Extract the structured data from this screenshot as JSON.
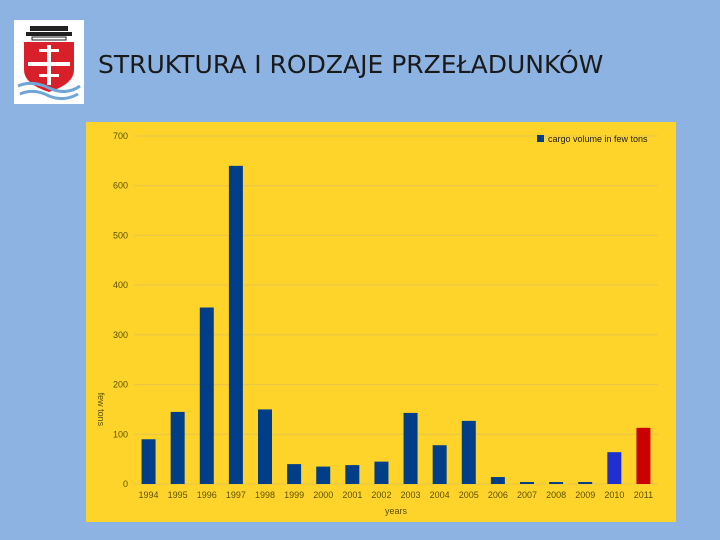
{
  "slide": {
    "title": "STRUKTURA I RODZAJE PRZEŁADUNKÓW"
  },
  "colors": {
    "background": "#8db3e2",
    "plot_background": "#ffd42a",
    "bar_default": "#003f87",
    "bar_2010": "#1f2fd0",
    "bar_2011": "#c80000"
  },
  "logo": {
    "icon": "city-crest-ship-icon"
  },
  "chart_data": {
    "type": "bar",
    "categories": [
      "1994",
      "1995",
      "1996",
      "1997",
      "1998",
      "1999",
      "2000",
      "2001",
      "2002",
      "2003",
      "2004",
      "2005",
      "2006",
      "2007",
      "2008",
      "2009",
      "2010",
      "2011"
    ],
    "series": [
      {
        "name": "cargo volume in few tons",
        "values": [
          90,
          145,
          355,
          640,
          150,
          40,
          35,
          38,
          45,
          143,
          78,
          127,
          14,
          4,
          4,
          4,
          64,
          113
        ],
        "colors": [
          "#003f87",
          "#003f87",
          "#003f87",
          "#003f87",
          "#003f87",
          "#003f87",
          "#003f87",
          "#003f87",
          "#003f87",
          "#003f87",
          "#003f87",
          "#003f87",
          "#003f87",
          "#003f87",
          "#003f87",
          "#003f87",
          "#1f2fd0",
          "#c80000"
        ]
      }
    ],
    "xlabel": "years",
    "ylabel": "few tons",
    "ylim": [
      0,
      700
    ],
    "yticks": [
      0,
      100,
      200,
      300,
      400,
      500,
      600,
      700
    ],
    "grid": true,
    "legend": "top-right"
  }
}
